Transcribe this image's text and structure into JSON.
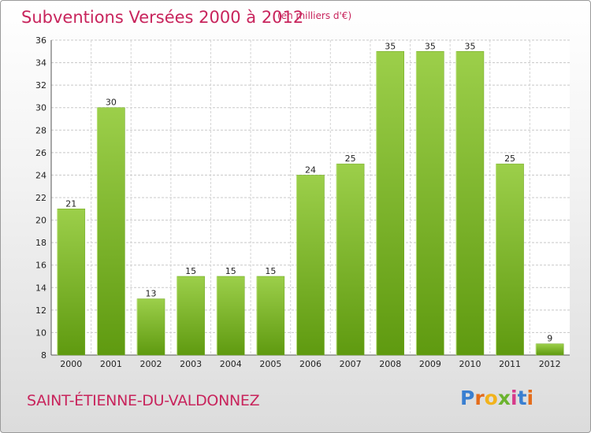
{
  "title": "Subventions Versées 2000 à 2012",
  "subtitle": "(en milliers d'€)",
  "commune": "SAINT-ÉTIENNE-DU-VALDONNEZ",
  "logo": {
    "letters": [
      {
        "ch": "P",
        "color": "#3a7fd1"
      },
      {
        "ch": "r",
        "color": "#e46c1b"
      },
      {
        "ch": "o",
        "color": "#f2b31c"
      },
      {
        "ch": "x",
        "color": "#6bb32e"
      },
      {
        "ch": "i",
        "color": "#d63a8a"
      },
      {
        "ch": "t",
        "color": "#3a7fd1"
      },
      {
        "ch": "i",
        "color": "#e46c1b"
      }
    ]
  },
  "colors": {
    "bar_top": "#9ccf4a",
    "bar_bottom": "#5f9a10",
    "accent": "#c8245c"
  },
  "chart_data": {
    "type": "bar",
    "categories": [
      "2000",
      "2001",
      "2002",
      "2003",
      "2004",
      "2005",
      "2006",
      "2007",
      "2008",
      "2009",
      "2010",
      "2011",
      "2012"
    ],
    "values": [
      21,
      30,
      13,
      15,
      15,
      15,
      24,
      25,
      35,
      35,
      35,
      25,
      9
    ],
    "ylim": [
      8,
      36
    ],
    "yticks": [
      8,
      10,
      12,
      14,
      16,
      18,
      20,
      22,
      24,
      26,
      28,
      30,
      32,
      34,
      36
    ],
    "grid": true,
    "title": "Subventions Versées 2000 à 2012",
    "subtitle": "(en milliers d'€)",
    "xlabel": "",
    "ylabel": ""
  }
}
